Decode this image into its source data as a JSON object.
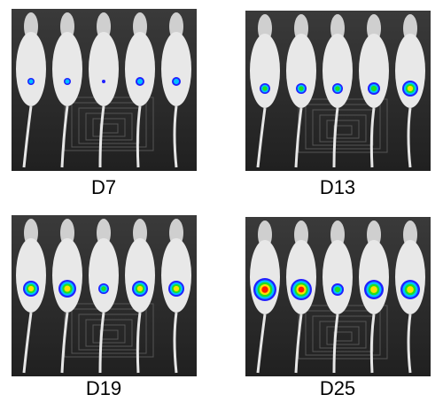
{
  "panels": [
    {
      "label": "D7"
    },
    {
      "label": "D13"
    },
    {
      "label": "D19"
    },
    {
      "label": "D25"
    }
  ]
}
